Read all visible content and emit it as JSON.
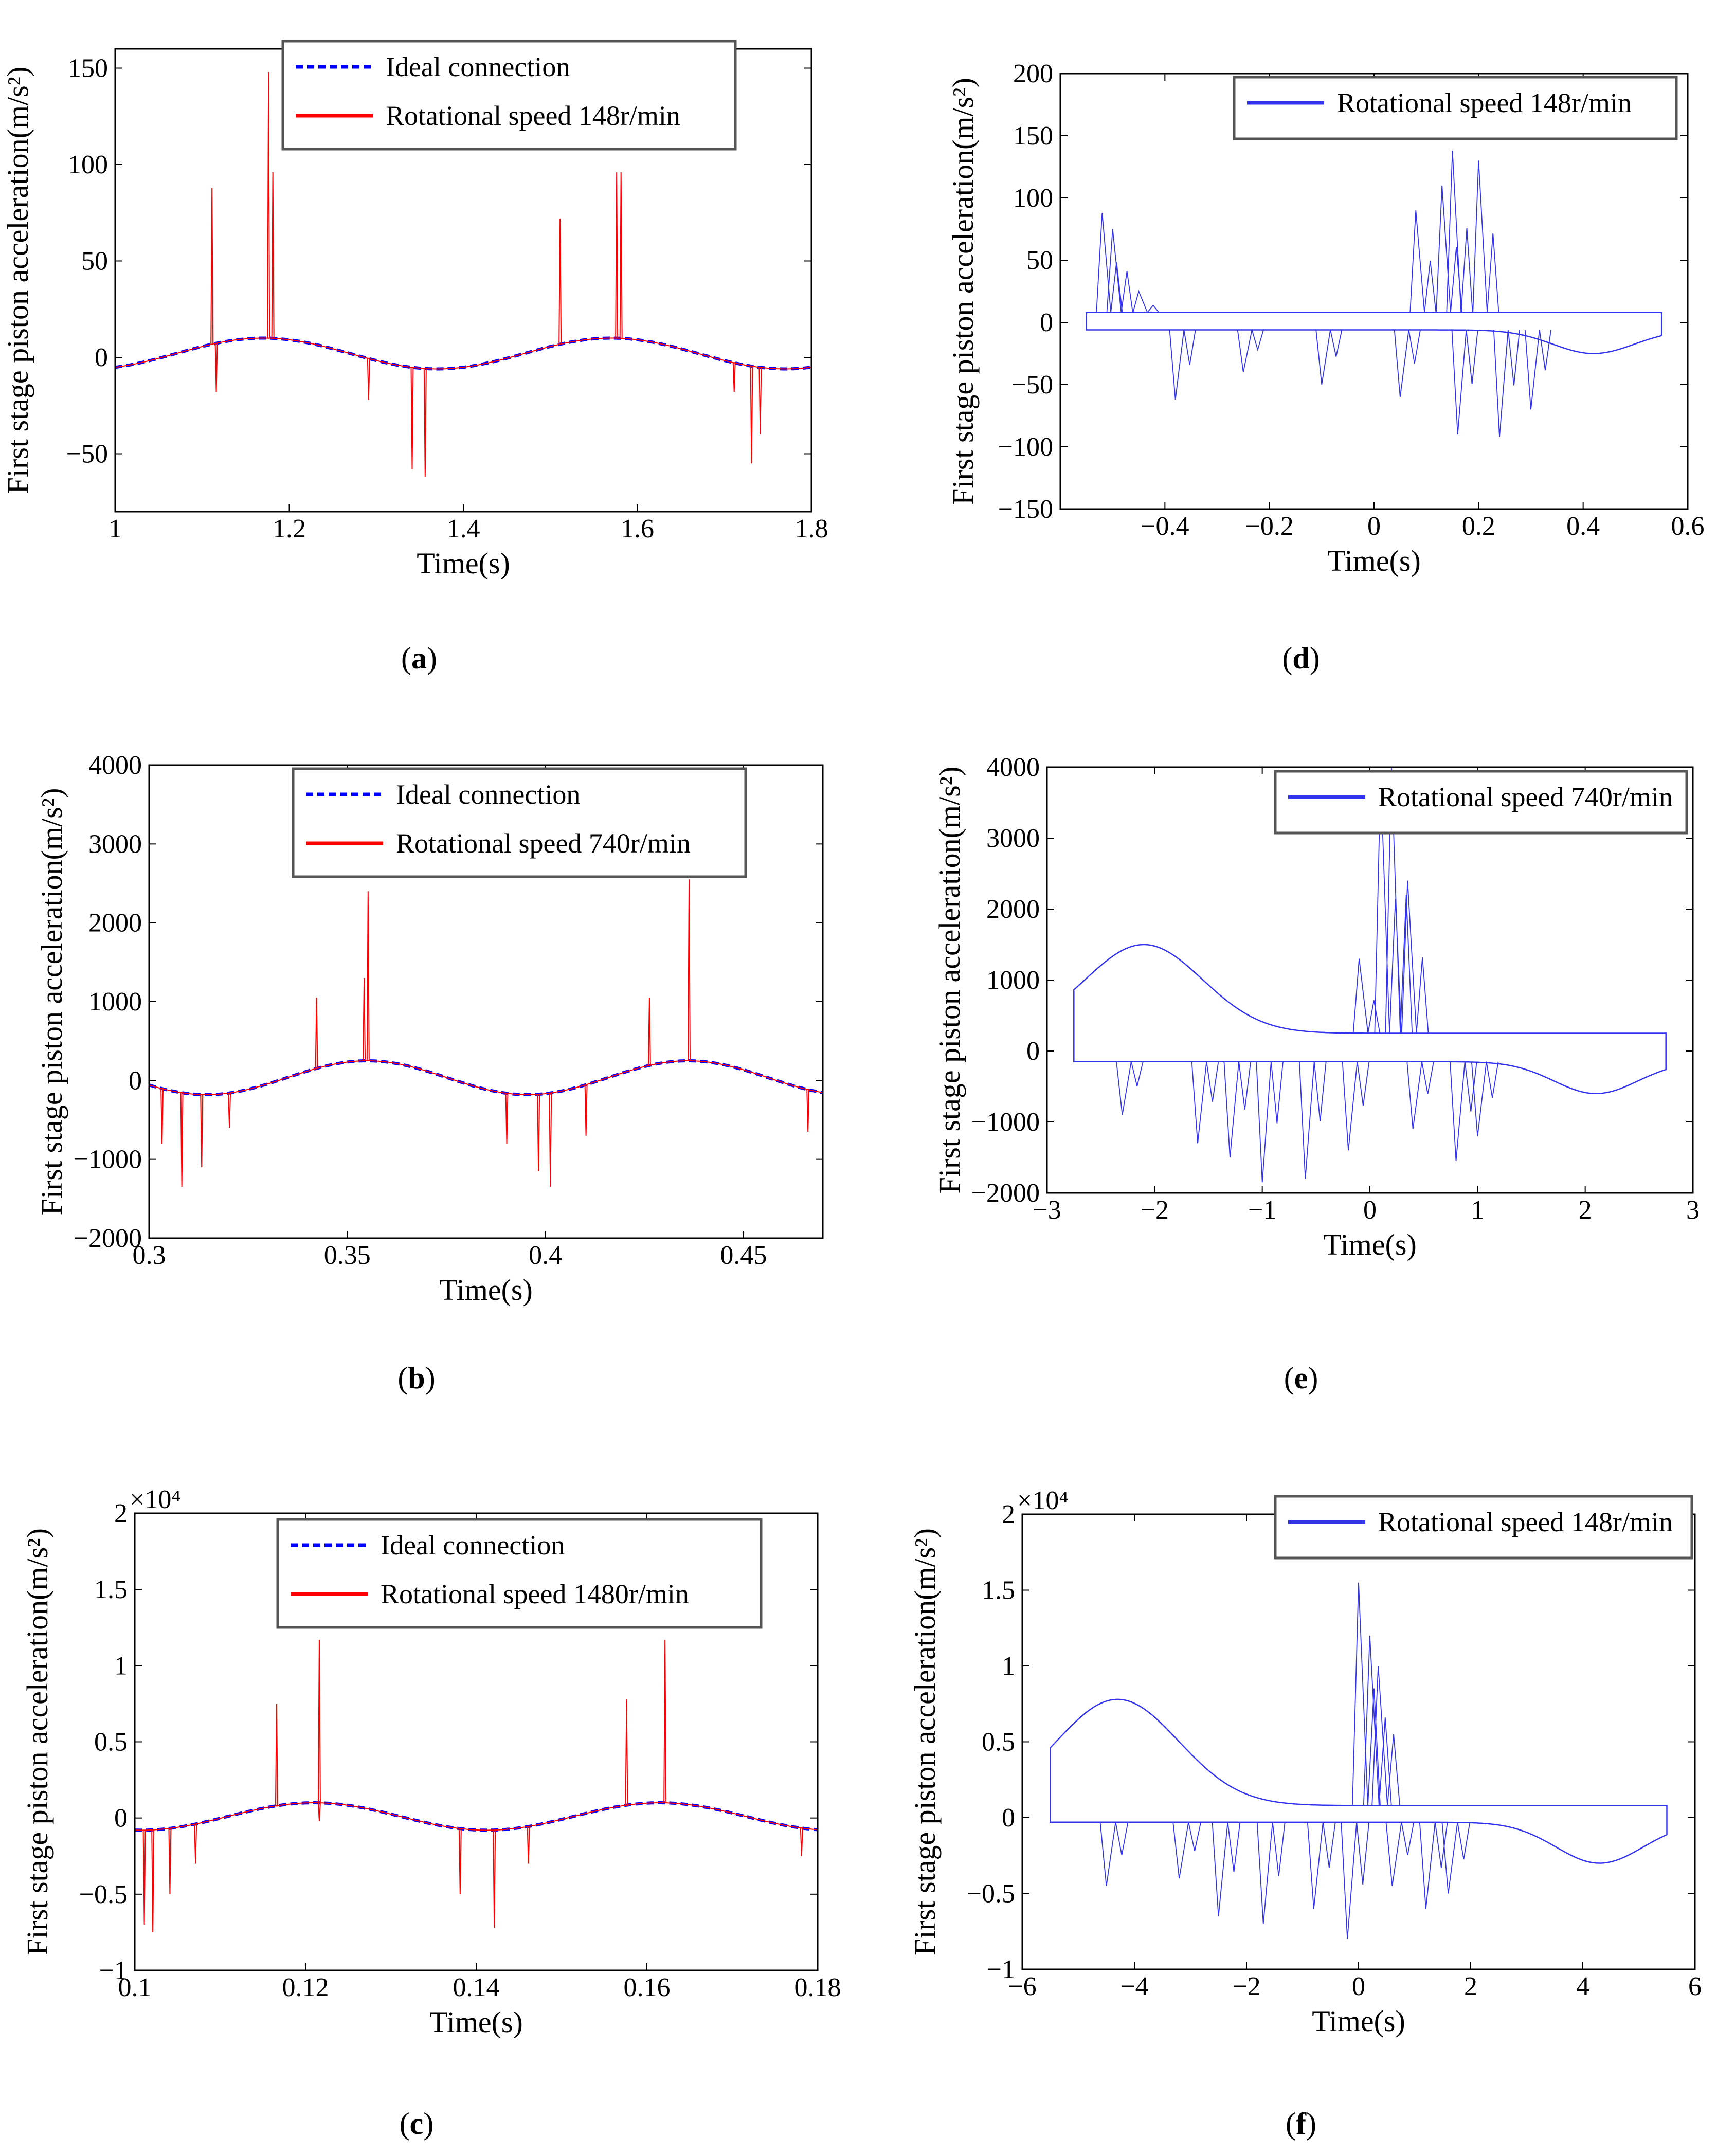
{
  "figure": {
    "panels": [
      {
        "id": "a",
        "caption": "(a)",
        "caption_letter": "a"
      },
      {
        "id": "b",
        "caption": "(b)",
        "caption_letter": "b"
      },
      {
        "id": "c",
        "caption": "(c)",
        "caption_letter": "c"
      },
      {
        "id": "d",
        "caption": "(d)",
        "caption_letter": "d"
      },
      {
        "id": "e",
        "caption": "(e)",
        "caption_letter": "e"
      },
      {
        "id": "f",
        "caption": "(f)",
        "caption_letter": "f"
      }
    ],
    "colors": {
      "ideal": "#0000ff",
      "speed": "#ff0000",
      "phase": "#3333ee",
      "frame": "#000000",
      "legend_border": "#555555"
    }
  },
  "chart_data": [
    {
      "id": "a",
      "type": "line",
      "xlabel": "Time(s)",
      "ylabel": "First stage piston acceleration(m/s²)",
      "xlim": [
        1,
        1.8
      ],
      "ylim": [
        -80,
        160
      ],
      "xticks": [
        1,
        1.2,
        1.4,
        1.6,
        1.8
      ],
      "xtick_labels": [
        "1",
        "1.2",
        "1.4",
        "1.6",
        "1.8"
      ],
      "yticks": [
        -50,
        0,
        50,
        100,
        150
      ],
      "ytick_labels": [
        "−50",
        "0",
        "50",
        "100",
        "150"
      ],
      "exponent": "",
      "legend": [
        "Ideal connection",
        "Rotational speed 148r/min"
      ],
      "legend_position": "top-center",
      "series": [
        {
          "name": "Ideal connection",
          "style": "dashed",
          "kind": "sine",
          "period": 0.4,
          "peak_time": 1.17,
          "max": 10,
          "min": -6
        },
        {
          "name": "Rotational speed 148r/min",
          "style": "solid",
          "kind": "sine-with-spikes",
          "period": 0.4,
          "peak_time": 1.17,
          "max": 10,
          "min": -6,
          "spikes": [
            [
              1.11,
              88
            ],
            [
              1.115,
              -18
            ],
            [
              1.175,
              148
            ],
            [
              1.18,
              96
            ],
            [
              1.29,
              -22
            ],
            [
              1.34,
              -58
            ],
            [
              1.355,
              -62
            ],
            [
              1.51,
              72
            ],
            [
              1.575,
              96
            ],
            [
              1.58,
              96
            ],
            [
              1.71,
              -18
            ],
            [
              1.73,
              -55
            ],
            [
              1.74,
              -40
            ]
          ]
        }
      ]
    },
    {
      "id": "b",
      "type": "line",
      "xlabel": "Time(s)",
      "ylabel": "First stage piston acceleration(m/s²)",
      "xlim": [
        0.3,
        0.47
      ],
      "ylim": [
        -2000,
        4000
      ],
      "xticks": [
        0.3,
        0.35,
        0.4,
        0.45
      ],
      "xtick_labels": [
        "0.3",
        "0.35",
        "0.4",
        "0.45"
      ],
      "yticks": [
        -2000,
        -1000,
        0,
        1000,
        2000,
        3000,
        4000
      ],
      "ytick_labels": [
        "−2000",
        "−1000",
        "0",
        "1000",
        "2000",
        "3000",
        "4000"
      ],
      "exponent": "",
      "legend": [
        "Ideal connection",
        "Rotational speed 740r/min"
      ],
      "legend_position": "top-right",
      "series": [
        {
          "name": "Ideal connection",
          "style": "dashed",
          "kind": "sine",
          "period": 0.081,
          "peak_time": 0.355,
          "max": 250,
          "min": -180
        },
        {
          "name": "Rotational speed 740r/min",
          "style": "solid",
          "kind": "sine-with-spikes",
          "period": 0.081,
          "peak_time": 0.355,
          "max": 250,
          "min": -180,
          "spikes": [
            [
              0.303,
              -800
            ],
            [
              0.308,
              -1350
            ],
            [
              0.313,
              -1100
            ],
            [
              0.32,
              -600
            ],
            [
              0.342,
              1050
            ],
            [
              0.354,
              1300
            ],
            [
              0.355,
              2400
            ],
            [
              0.39,
              -800
            ],
            [
              0.398,
              -1150
            ],
            [
              0.401,
              -1350
            ],
            [
              0.41,
              -700
            ],
            [
              0.426,
              1050
            ],
            [
              0.436,
              2550
            ],
            [
              0.466,
              -650
            ]
          ]
        }
      ]
    },
    {
      "id": "c",
      "type": "line",
      "xlabel": "Time(s)",
      "ylabel": "First stage piston acceleration(m/s²)",
      "xlim": [
        0.1,
        0.18
      ],
      "ylim": [
        -1,
        2
      ],
      "xticks": [
        0.1,
        0.12,
        0.14,
        0.16,
        0.18
      ],
      "xtick_labels": [
        "0.1",
        "0.12",
        "0.14",
        "0.16",
        "0.18"
      ],
      "yticks": [
        -1,
        -0.5,
        0,
        0.5,
        1,
        1.5,
        2
      ],
      "ytick_labels": [
        "−1",
        "−0.5",
        "0",
        "0.5",
        "1",
        "1.5",
        "2"
      ],
      "exponent": "×10⁴",
      "legend": [
        "Ideal connection",
        "Rotational speed 1480r/min"
      ],
      "legend_position": "top-right",
      "series": [
        {
          "name": "Ideal connection",
          "style": "dashed",
          "kind": "sine",
          "period": 0.0405,
          "peak_time": 0.121,
          "max": 0.1,
          "min": -0.08
        },
        {
          "name": "Rotational speed 1480r/min",
          "style": "solid",
          "kind": "sine-with-spikes",
          "period": 0.0405,
          "peak_time": 0.121,
          "max": 0.1,
          "min": -0.08,
          "spikes": [
            [
              0.101,
              -0.7
            ],
            [
              0.102,
              -0.75
            ],
            [
              0.104,
              -0.5
            ],
            [
              0.107,
              -0.3
            ],
            [
              0.1165,
              0.75
            ],
            [
              0.1215,
              1.17
            ],
            [
              0.1215,
              -0.02
            ],
            [
              0.138,
              -0.5
            ],
            [
              0.142,
              -0.72
            ],
            [
              0.146,
              -0.3
            ],
            [
              0.1575,
              0.78
            ],
            [
              0.162,
              1.17
            ],
            [
              0.178,
              -0.25
            ]
          ]
        }
      ]
    },
    {
      "id": "d",
      "type": "line",
      "xlabel": "Time(s)",
      "ylabel": "First stage piston acceleration(m/s²)",
      "xlim": [
        -0.6,
        0.6
      ],
      "ylim": [
        -150,
        200
      ],
      "xticks": [
        -0.4,
        -0.2,
        0,
        0.2,
        0.4,
        0.6
      ],
      "xtick_labels": [
        "−0.4",
        "−0.2",
        "0",
        "0.2",
        "0.4",
        "0.6"
      ],
      "yticks": [
        -150,
        -100,
        -50,
        0,
        50,
        100,
        150,
        200
      ],
      "ytick_labels": [
        "−150",
        "−100",
        "−50",
        "0",
        "50",
        "100",
        "150",
        "200"
      ],
      "exponent": "",
      "legend": [
        "Rotational speed 148r/min"
      ],
      "legend_position": "top-right",
      "series": [
        {
          "name": "Rotational speed 148r/min",
          "style": "solid",
          "kind": "phase",
          "x_extent": 0.55,
          "upper": 8,
          "lower": -6,
          "dip_x": 0.42,
          "dip": -25,
          "spikes": [
            [
              -0.52,
              88
            ],
            [
              -0.5,
              75
            ],
            [
              -0.38,
              -62
            ],
            [
              -0.1,
              -50
            ],
            [
              0.05,
              -60
            ],
            [
              0.08,
              90
            ],
            [
              0.13,
              110
            ],
            [
              0.15,
              138
            ],
            [
              0.16,
              -90
            ],
            [
              0.2,
              130
            ],
            [
              0.24,
              -92
            ],
            [
              0.3,
              -70
            ],
            [
              -0.25,
              -40
            ],
            [
              -0.45,
              25
            ]
          ]
        }
      ]
    },
    {
      "id": "e",
      "type": "line",
      "xlabel": "Time(s)",
      "ylabel": "First stage piston acceleration(m/s²)",
      "xlim": [
        -3,
        3
      ],
      "ylim": [
        -2000,
        4000
      ],
      "xticks": [
        -3,
        -2,
        -1,
        0,
        1,
        2,
        3
      ],
      "xtick_labels": [
        "−3",
        "−2",
        "−1",
        "0",
        "1",
        "2",
        "3"
      ],
      "yticks": [
        -2000,
        -1000,
        0,
        1000,
        2000,
        3000,
        4000
      ],
      "ytick_labels": [
        "−2000",
        "−1000",
        "0",
        "1000",
        "2000",
        "3000",
        "4000"
      ],
      "exponent": "",
      "legend": [
        "Rotational speed 740r/min"
      ],
      "legend_position": "top-right",
      "series": [
        {
          "name": "Rotational speed 740r/min",
          "style": "solid",
          "kind": "phase",
          "x_extent": 2.75,
          "upper": 250,
          "lower": -150,
          "dip_x": 2.1,
          "dip": -600,
          "hump_x": -2.1,
          "hump": 1500,
          "spikes": [
            [
              -1.0,
              -1850
            ],
            [
              -0.6,
              -1800
            ],
            [
              -1.3,
              -1500
            ],
            [
              -0.2,
              -1400
            ],
            [
              -0.1,
              1300
            ],
            [
              0.1,
              3900
            ],
            [
              0.2,
              4000
            ],
            [
              0.35,
              2400
            ],
            [
              0.4,
              -1100
            ],
            [
              0.8,
              -1550
            ],
            [
              1.0,
              -1200
            ],
            [
              -2.3,
              -900
            ],
            [
              -1.6,
              -1300
            ]
          ]
        }
      ]
    },
    {
      "id": "f",
      "type": "line",
      "xlabel": "Time(s)",
      "ylabel": "First stage piston acceleration(m/s²)",
      "xlim": [
        -6,
        6
      ],
      "ylim": [
        -1,
        2
      ],
      "xticks": [
        -6,
        -4,
        -2,
        0,
        2,
        4,
        6
      ],
      "xtick_labels": [
        "−6",
        "−4",
        "−2",
        "0",
        "2",
        "4",
        "6"
      ],
      "yticks": [
        -1,
        -0.5,
        0,
        0.5,
        1,
        1.5,
        2
      ],
      "ytick_labels": [
        "−1",
        "−0.5",
        "0",
        "0.5",
        "1",
        "1.5",
        "2"
      ],
      "exponent": "×10⁴",
      "legend": [
        "Rotational speed 148r/min"
      ],
      "legend_position": "top-right",
      "series": [
        {
          "name": "Rotational speed 148r/min",
          "style": "solid",
          "kind": "phase",
          "x_extent": 5.5,
          "upper": 0.08,
          "lower": -0.03,
          "dip_x": 4.3,
          "dip": -0.3,
          "hump_x": -4.3,
          "hump": 0.78,
          "spikes": [
            [
              -4.5,
              -0.45
            ],
            [
              -2.5,
              -0.65
            ],
            [
              -1.7,
              -0.7
            ],
            [
              -0.8,
              -0.6
            ],
            [
              -0.2,
              -0.8
            ],
            [
              0.0,
              1.55
            ],
            [
              0.2,
              1.2
            ],
            [
              0.35,
              1.0
            ],
            [
              0.6,
              -0.45
            ],
            [
              1.2,
              -0.6
            ],
            [
              1.6,
              -0.5
            ],
            [
              -3.2,
              -0.4
            ]
          ]
        }
      ]
    }
  ]
}
